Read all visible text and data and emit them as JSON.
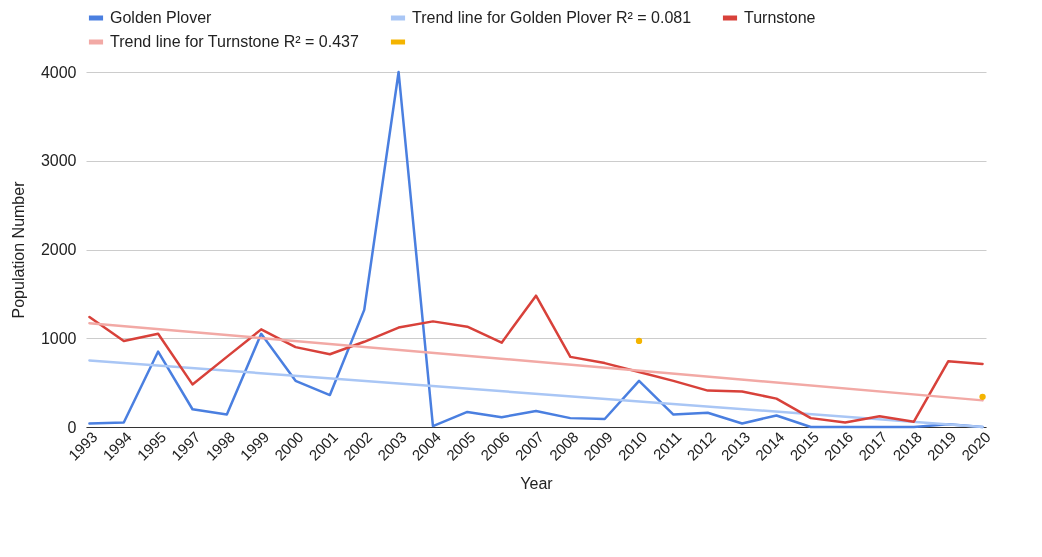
{
  "chart_data": {
    "type": "line",
    "xlabel": "Year",
    "ylabel": "Population Number",
    "categories": [
      "1993",
      "1994",
      "1995",
      "1997",
      "1998",
      "1999",
      "2000",
      "2001",
      "2002",
      "2003",
      "2004",
      "2005",
      "2006",
      "2007",
      "2008",
      "2009",
      "2010",
      "2011",
      "2012",
      "2013",
      "2014",
      "2015",
      "2016",
      "2017",
      "2018",
      "2019",
      "2020"
    ],
    "series": [
      {
        "name": "Golden Plover",
        "color": "#4a7fe0",
        "values": [
          40,
          50,
          850,
          200,
          140,
          1050,
          520,
          360,
          1320,
          4000,
          10,
          170,
          110,
          180,
          100,
          90,
          520,
          140,
          160,
          40,
          130,
          0,
          0,
          0,
          0,
          30,
          0
        ]
      },
      {
        "name": "Trend line for Golden Plover R² = 0.081",
        "type": "line",
        "color": "#a9c6f5",
        "values": [
          750,
          null,
          null,
          null,
          null,
          null,
          null,
          null,
          null,
          null,
          null,
          null,
          null,
          null,
          null,
          null,
          null,
          null,
          null,
          null,
          null,
          null,
          null,
          null,
          null,
          null,
          0
        ]
      },
      {
        "name": "Turnstone",
        "color": "#d8413a",
        "values": [
          1240,
          970,
          1050,
          480,
          790,
          1100,
          900,
          820,
          960,
          1120,
          1190,
          1130,
          950,
          1480,
          790,
          720,
          620,
          520,
          410,
          400,
          320,
          100,
          50,
          120,
          60,
          740,
          710
        ]
      },
      {
        "name": "Trend line for Turnstone R² = 0.437",
        "type": "line",
        "color": "#f2a9a5",
        "values": [
          1170,
          null,
          null,
          null,
          null,
          null,
          null,
          null,
          null,
          null,
          null,
          null,
          null,
          null,
          null,
          null,
          null,
          null,
          null,
          null,
          null,
          null,
          null,
          null,
          null,
          null,
          300
        ]
      },
      {
        "type": "scatter",
        "color": "#f4b400",
        "values": [
          null,
          null,
          null,
          null,
          null,
          null,
          null,
          null,
          null,
          null,
          null,
          null,
          null,
          null,
          null,
          null,
          970,
          null,
          null,
          null,
          null,
          null,
          null,
          null,
          null,
          null,
          340
        ]
      }
    ],
    "ylim": [
      0,
      4000
    ],
    "yticks": [
      0,
      1000,
      2000,
      3000,
      4000
    ],
    "grid": "y",
    "legend": "top"
  }
}
